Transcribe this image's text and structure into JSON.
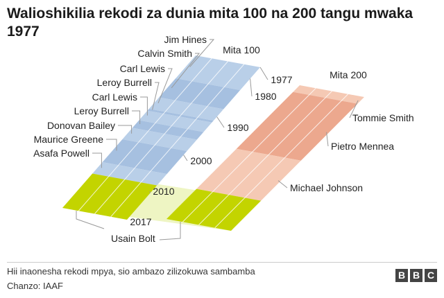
{
  "title": "Walioshikilia rekodi za dunia mita 100 na 200 tangu mwaka 1977",
  "chart_data": {
    "type": "diagram",
    "year_range": [
      1977,
      2017
    ],
    "year_labels": [
      "1977",
      "1980",
      "1990",
      "2000",
      "2010",
      "2017"
    ],
    "series": [
      {
        "name": "Mita 100",
        "records": [
          {
            "holder": "Jim Hines",
            "start": 1977,
            "end": 1983
          },
          {
            "holder": "Calvin Smith",
            "start": 1983,
            "end": 1988
          },
          {
            "holder": "Carl Lewis",
            "start": 1988,
            "end": 1991
          },
          {
            "holder": "Leroy Burrell",
            "start": 1991,
            "end": 1991.5
          },
          {
            "holder": "Carl Lewis",
            "start": 1991.5,
            "end": 1994
          },
          {
            "holder": "Leroy Burrell",
            "start": 1994,
            "end": 1996
          },
          {
            "holder": "Donovan Bailey",
            "start": 1996,
            "end": 1999
          },
          {
            "holder": "Maurice Greene",
            "start": 1999,
            "end": 2005
          },
          {
            "holder": "Asafa Powell",
            "start": 2005,
            "end": 2008
          },
          {
            "holder": "Usain Bolt",
            "start": 2008,
            "end": 2017
          }
        ]
      },
      {
        "name": "Mita 200",
        "records": [
          {
            "holder": "Tommie Smith",
            "start": 1977,
            "end": 1979
          },
          {
            "holder": "Pietro Mennea",
            "start": 1979,
            "end": 1996
          },
          {
            "holder": "Michael Johnson",
            "start": 1996,
            "end": 2008
          },
          {
            "holder": "Usain Bolt",
            "start": 2008,
            "end": 2017
          }
        ]
      }
    ],
    "colors": {
      "m100_a": "#b9cfe8",
      "m100_b": "#a6c0e0",
      "m200_a": "#f5c9b4",
      "m200_b": "#eca88e",
      "bolt": "#c3d400",
      "bolt_band": "#eef5c3",
      "leader": "#999999"
    }
  },
  "footer": {
    "note": "Hii inaonesha rekodi mpya, sio ambazo zilizokuwa sambamba",
    "source": "Chanzo: IAAF"
  },
  "logo": [
    "B",
    "B",
    "C"
  ]
}
